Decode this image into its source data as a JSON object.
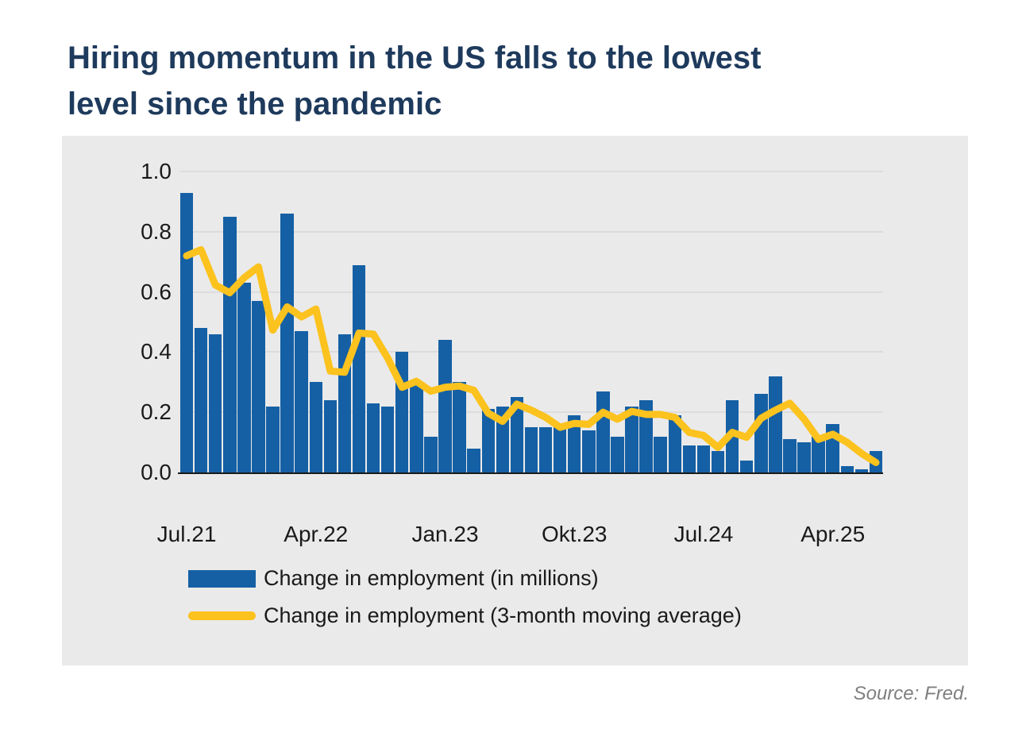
{
  "title": {
    "line1": "Hiring momentum in the US falls to the lowest",
    "line2": "level since the pandemic"
  },
  "source_note": "Source: Fred.",
  "colors": {
    "title_text": "#1e3a5c",
    "bar": "#1560a5",
    "line": "#fcc21d",
    "panel_background": "#eaeaea",
    "gridline": "#dcdcdc",
    "axis_text": "#1a1a1a",
    "source_text": "#7f7f7f"
  },
  "chart_data": {
    "type": "bar",
    "title": "Hiring momentum in the US falls to the lowest level since the pandemic",
    "xlabel": "",
    "ylabel": "",
    "ylim": [
      0.0,
      1.0
    ],
    "grid": true,
    "legend_position": "bottom-left",
    "categories": [
      "Jul.21",
      "Aug.21",
      "Sep.21",
      "Okt.21",
      "Nov.21",
      "Dez.21",
      "Jan.22",
      "Feb.22",
      "Mär.22",
      "Apr.22",
      "Mai.22",
      "Jun.22",
      "Jul.22",
      "Aug.22",
      "Sep.22",
      "Okt.22",
      "Nov.22",
      "Dez.22",
      "Jan.23",
      "Feb.23",
      "Mär.23",
      "Apr.23",
      "Mai.23",
      "Jun.23",
      "Jul.23",
      "Aug.23",
      "Sep.23",
      "Okt.23",
      "Nov.23",
      "Dez.23",
      "Jan.24",
      "Feb.24",
      "Mär.24",
      "Apr.24",
      "Mai.24",
      "Jun.24",
      "Jul.24",
      "Aug.24",
      "Sep.24",
      "Okt.24",
      "Nov.24",
      "Dez.24",
      "Jan.25",
      "Feb.25",
      "Mär.25",
      "Apr.25",
      "Mai.25",
      "Jun.25",
      "Jul.25"
    ],
    "series": [
      {
        "name": "Change in employment (in millions)",
        "type": "bar",
        "color": "#1560a5",
        "values": [
          0.93,
          0.48,
          0.46,
          0.85,
          0.63,
          0.57,
          0.22,
          0.86,
          0.47,
          0.3,
          0.24,
          0.46,
          0.69,
          0.23,
          0.22,
          0.4,
          0.29,
          0.12,
          0.44,
          0.3,
          0.08,
          0.21,
          0.22,
          0.25,
          0.15,
          0.15,
          0.15,
          0.19,
          0.14,
          0.27,
          0.12,
          0.22,
          0.24,
          0.12,
          0.19,
          0.09,
          0.09,
          0.07,
          0.24,
          0.04,
          0.26,
          0.32,
          0.11,
          0.1,
          0.12,
          0.16,
          0.02,
          0.01,
          0.07
        ]
      },
      {
        "name": "Change in employment (3-month moving average)",
        "type": "line",
        "color": "#fcc21d",
        "values": [
          0.72,
          0.74,
          0.623,
          0.597,
          0.647,
          0.683,
          0.473,
          0.55,
          0.517,
          0.543,
          0.337,
          0.333,
          0.463,
          0.46,
          0.38,
          0.283,
          0.303,
          0.27,
          0.283,
          0.287,
          0.273,
          0.197,
          0.17,
          0.227,
          0.207,
          0.183,
          0.15,
          0.163,
          0.16,
          0.2,
          0.177,
          0.203,
          0.193,
          0.193,
          0.183,
          0.133,
          0.123,
          0.083,
          0.133,
          0.117,
          0.18,
          0.207,
          0.23,
          0.177,
          0.11,
          0.127,
          0.1,
          0.063,
          0.033
        ]
      }
    ],
    "yticks": [
      {
        "label": "0.0",
        "value": 0.0
      },
      {
        "label": "0.2",
        "value": 0.2
      },
      {
        "label": "0.4",
        "value": 0.4
      },
      {
        "label": "0.6",
        "value": 0.6
      },
      {
        "label": "0.8",
        "value": 0.8
      },
      {
        "label": "1.0",
        "value": 1.0
      }
    ],
    "xticks": [
      {
        "label": "Jul.21",
        "index": 0
      },
      {
        "label": "Apr.22",
        "index": 9
      },
      {
        "label": "Jan.23",
        "index": 18
      },
      {
        "label": "Okt.23",
        "index": 27
      },
      {
        "label": "Jul.24",
        "index": 36
      },
      {
        "label": "Apr.25",
        "index": 45
      }
    ]
  },
  "legend": {
    "bars_label": "Change in employment (in millions)",
    "line_label": "Change in employment (3-month moving average)"
  }
}
